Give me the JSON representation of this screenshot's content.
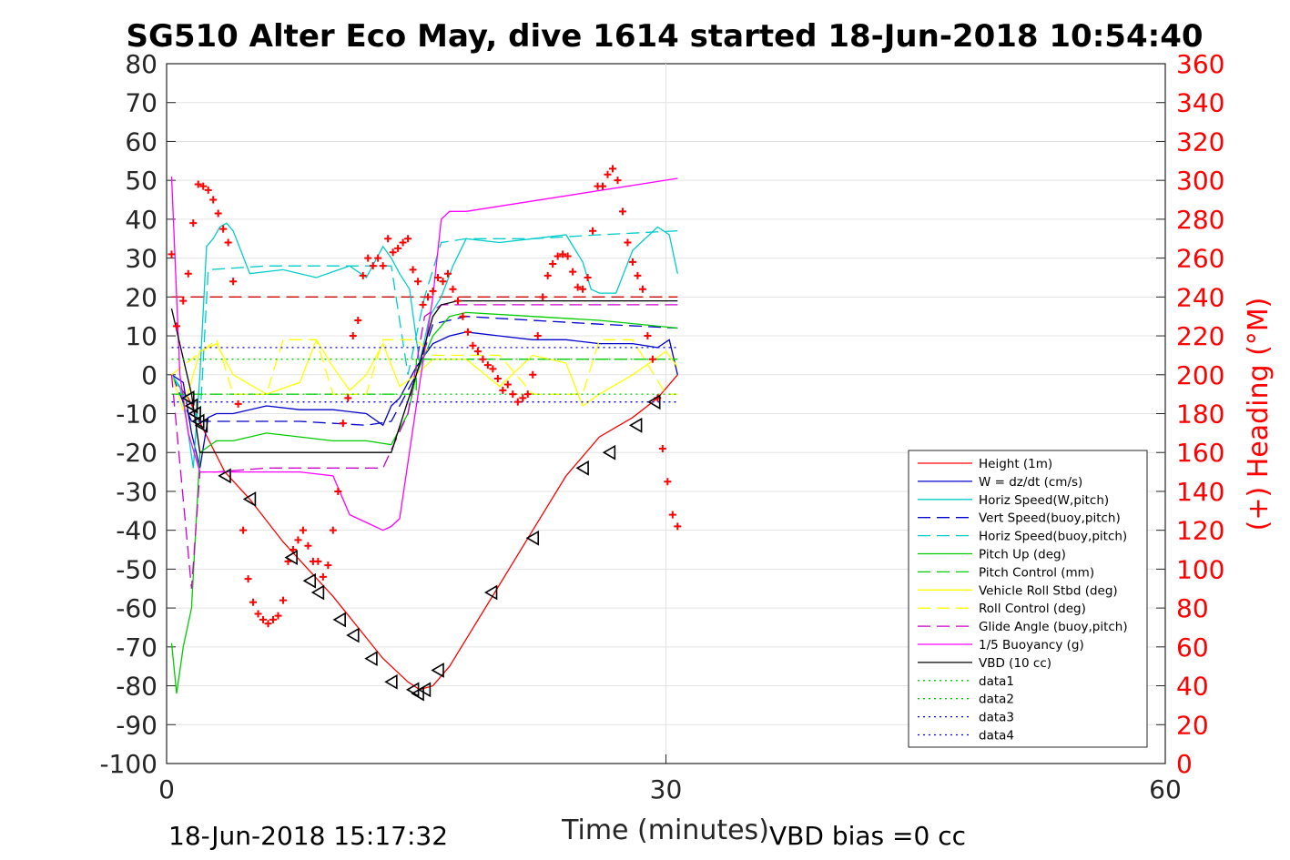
{
  "chart_data": {
    "type": "line",
    "title": "SG510 Alter Eco May, dive 1614 started 18-Jun-2018 10:54:40",
    "xlabel": "Time (minutes)",
    "ylabel_right": "(+) Heading (°M)",
    "xlim": [
      0,
      60
    ],
    "ylim_left": [
      -100,
      80
    ],
    "ylim_right": [
      0,
      360
    ],
    "x_ticks": [
      "0",
      "30",
      "60"
    ],
    "y_ticks_left": [
      "80",
      "70",
      "60",
      "50",
      "40",
      "30",
      "20",
      "10",
      "0",
      "-10",
      "-20",
      "-30",
      "-40",
      "-50",
      "-60",
      "-70",
      "-80",
      "-90",
      "-100"
    ],
    "y_ticks_right": [
      "360",
      "340",
      "320",
      "300",
      "280",
      "260",
      "240",
      "220",
      "200",
      "180",
      "160",
      "140",
      "120",
      "100",
      "80",
      "60",
      "40",
      "20",
      "0"
    ],
    "grid": true,
    "legend_position": "lower-right",
    "footer_left": "18-Jun-2018 15:17:32",
    "footer_right": "VBD bias =0 cc",
    "series": [
      {
        "name": "Height (1m)",
        "color": "#ff0000",
        "style": "solid",
        "x": [
          0.3,
          1.3,
          2.2,
          3.5,
          5,
          7,
          8.5,
          10,
          11.5,
          13,
          14.5,
          15.2,
          16,
          17,
          18,
          20,
          22,
          24,
          26,
          28,
          29.5,
          30.7
        ],
        "y": [
          -0.5,
          -6,
          -14,
          -25,
          -32,
          -43,
          -50,
          -57,
          -65,
          -73,
          -79,
          -81,
          -80,
          -75,
          -68,
          -54,
          -40,
          -26,
          -16,
          -11,
          -6,
          0
        ]
      },
      {
        "name": "W = dz/dt (cm/s)",
        "color": "#0000cc",
        "style": "solid",
        "x": [
          0.3,
          1,
          1.5,
          2,
          2.5,
          3,
          4,
          6,
          8,
          10,
          12,
          13,
          13.5,
          14,
          15,
          16,
          17,
          18,
          20,
          22,
          24,
          26,
          28,
          29.5,
          30.2,
          30.7
        ],
        "y": [
          0,
          -2,
          -15,
          -24,
          -11,
          -10,
          -10,
          -8,
          -9,
          -9,
          -10,
          -13,
          -8,
          -6,
          2,
          8,
          10,
          11,
          10,
          9,
          9,
          8,
          8,
          7,
          9,
          0
        ]
      },
      {
        "name": "Horiz Speed(W,pitch)",
        "color": "#00cccc",
        "style": "solid",
        "x": [
          0.3,
          0.8,
          1.2,
          1.6,
          2,
          2.4,
          2.8,
          3.2,
          3.6,
          4,
          5,
          7,
          9,
          11,
          12,
          13,
          13.5,
          14,
          14.6,
          15.2,
          15.8,
          16.5,
          17.2,
          18,
          20,
          22,
          24,
          25,
          25.5,
          26,
          27,
          28,
          29.5,
          30.2,
          30.7
        ],
        "y": [
          0,
          -3,
          -12,
          -24,
          0,
          33,
          35,
          38,
          39,
          37,
          26,
          27,
          25,
          28,
          25,
          33,
          30,
          26,
          22,
          3,
          15,
          20,
          28,
          35,
          34,
          35,
          36,
          29,
          22,
          21,
          21,
          32,
          38,
          36,
          26
        ]
      },
      {
        "name": "Vert Speed(buoy,pitch)",
        "color": "#0000cc",
        "style": "dashed",
        "x": [
          0.3,
          1.5,
          2.5,
          4,
          8,
          12,
          13.5,
          15,
          16,
          18,
          22,
          26,
          30.7
        ],
        "y": [
          0,
          -12,
          -12,
          -12,
          -12,
          -13,
          -12,
          0,
          13,
          15,
          14,
          13,
          12
        ]
      },
      {
        "name": "Horiz Speed(buoy,pitch)",
        "color": "#00cccc",
        "style": "dashed",
        "x": [
          0.3,
          2,
          2.5,
          6,
          10,
          13.5,
          14.5,
          15.5,
          16.5,
          18,
          22,
          26,
          30.7
        ],
        "y": [
          0,
          -12,
          27,
          28,
          28,
          28,
          0,
          20,
          34,
          35,
          35,
          36,
          37
        ]
      },
      {
        "name": "Pitch Up (deg)",
        "color": "#00cc00",
        "style": "solid",
        "x": [
          0.3,
          0.6,
          1,
          1.5,
          2,
          3,
          4,
          6,
          8,
          10,
          12,
          13.5,
          14.5,
          15,
          16,
          17,
          18,
          22,
          26,
          30.7
        ],
        "y": [
          -69,
          -82,
          -70,
          -60,
          -20,
          -17,
          -17,
          -15,
          -16,
          -17,
          -17,
          -18,
          -10,
          0,
          10,
          15,
          16,
          15,
          14,
          12
        ]
      },
      {
        "name": "Pitch Control (mm)",
        "color": "#00cc00",
        "style": "dashed",
        "x": [
          0.3,
          15,
          15,
          30.7
        ],
        "y": [
          -5,
          -5,
          4,
          4
        ]
      },
      {
        "name": "Vehicle Roll Stbd (deg)",
        "color": "#ffff00",
        "style": "solid",
        "x": [
          0.3,
          1,
          2,
          3,
          4,
          6,
          8,
          9,
          10,
          11,
          12,
          13,
          14,
          15,
          16,
          18,
          20,
          22,
          24,
          25,
          26,
          28,
          30,
          30.7
        ],
        "y": [
          0,
          -9,
          6,
          8,
          0,
          -5,
          -2,
          9,
          2,
          -4,
          0,
          8,
          -3,
          0,
          4,
          4,
          -3,
          5,
          3,
          -8,
          -5,
          0,
          6,
          2
        ]
      },
      {
        "name": "Roll Control (deg)",
        "color": "#ffff00",
        "style": "dashed",
        "x": [
          0.3,
          3,
          4,
          6,
          7,
          9,
          10,
          12,
          13,
          15,
          16,
          20,
          22,
          25,
          26,
          28,
          30,
          30.7
        ],
        "y": [
          0,
          9,
          -5,
          -5,
          9,
          9,
          -5,
          -5,
          9,
          9,
          5,
          5,
          -5,
          -5,
          9,
          9,
          -5,
          -5
        ]
      },
      {
        "name": "Glide Angle (buoy,pitch)",
        "color": "#cc00cc",
        "style": "dashed",
        "x": [
          0.3,
          1.5,
          2,
          3,
          6,
          10,
          13,
          14.5,
          15.5,
          16.5,
          18,
          22,
          26,
          30.7
        ],
        "y": [
          0,
          -55,
          -25,
          -25,
          -24,
          -24,
          -24,
          -10,
          15,
          18,
          18,
          18,
          18,
          18
        ]
      },
      {
        "name": "1/5 Buoyancy (g)",
        "color": "#ff00ff",
        "style": "solid",
        "x": [
          0.3,
          0.8,
          1.3,
          2,
          3,
          8,
          10,
          11,
          12,
          13,
          13.5,
          14,
          15,
          16,
          16.5,
          17,
          18,
          30.7
        ],
        "y": [
          51,
          0,
          -15,
          -25,
          -25,
          -25,
          -26,
          -36,
          -38,
          -40,
          -39,
          -37,
          -8,
          20,
          40,
          42,
          42,
          50.5
        ]
      },
      {
        "name": "VBD (10 cc)",
        "color": "#000000",
        "style": "solid",
        "x": [
          0.3,
          1.5,
          2,
          13.5,
          15,
          16,
          16.5,
          17.5,
          30.7
        ],
        "y": [
          17,
          -5,
          -20,
          -20,
          0,
          15,
          18,
          19,
          19
        ]
      },
      {
        "name": "data1",
        "color": "#00cc00",
        "style": "dotted",
        "x": [
          0.3,
          30.7
        ],
        "y": [
          4,
          4
        ]
      },
      {
        "name": "data2",
        "color": "#00cc00",
        "style": "dotted",
        "x": [
          0.3,
          30.7
        ],
        "y": [
          -5,
          -5
        ]
      },
      {
        "name": "data3",
        "color": "#0000cc",
        "style": "dotted",
        "x": [
          0.3,
          30.7
        ],
        "y": [
          7,
          7
        ]
      },
      {
        "name": "data4",
        "color": "#0000cc",
        "style": "dotted",
        "x": [
          0.3,
          30.7
        ],
        "y": [
          -7,
          -7
        ]
      }
    ],
    "reference_lines": [
      {
        "color": "#cc0000",
        "style": "dashed",
        "x": [
          0.3,
          30.7
        ],
        "y": [
          20,
          20
        ]
      }
    ],
    "heading": {
      "color": "#ff0000",
      "marker": "+",
      "axis": "right",
      "x": [
        0.3,
        0.6,
        1,
        1.3,
        1.6,
        1.9,
        2.2,
        2.5,
        2.8,
        3.1,
        3.4,
        3.7,
        4,
        4.3,
        4.6,
        4.9,
        5.2,
        5.5,
        5.8,
        6.1,
        6.4,
        6.7,
        7,
        7.3,
        7.6,
        7.9,
        8.2,
        8.5,
        8.8,
        9.1,
        9.4,
        9.7,
        10,
        10.3,
        10.6,
        10.9,
        11.2,
        11.5,
        11.8,
        12.1,
        12.4,
        12.7,
        13,
        13.3,
        13.6,
        13.9,
        14.2,
        14.5,
        14.8,
        15.1,
        15.4,
        15.7,
        16,
        16.3,
        16.6,
        16.9,
        17.2,
        17.5,
        17.8,
        18.1,
        18.4,
        18.7,
        19,
        19.3,
        19.6,
        19.9,
        20.2,
        20.5,
        20.8,
        21.1,
        21.4,
        21.7,
        22,
        22.3,
        22.6,
        22.9,
        23.2,
        23.5,
        23.8,
        24.1,
        24.4,
        24.7,
        25,
        25.3,
        25.6,
        25.9,
        26.2,
        26.5,
        26.8,
        27.1,
        27.4,
        27.7,
        28,
        28.3,
        28.6,
        28.9,
        29.2,
        29.5,
        29.8,
        30.1,
        30.4,
        30.7
      ],
      "y": [
        262,
        225,
        238,
        252,
        278,
        298,
        297,
        295,
        290,
        283,
        275,
        268,
        248,
        185,
        120,
        95,
        83,
        77,
        74,
        72,
        74,
        76,
        84,
        104,
        110,
        115,
        120,
        112,
        104,
        104,
        96,
        102,
        120,
        140,
        175,
        188,
        220,
        228,
        251,
        260,
        256,
        260,
        256,
        270,
        263,
        265,
        268,
        270,
        254,
        248,
        236,
        240,
        243,
        250,
        248,
        252,
        244,
        238,
        230,
        222,
        215,
        212,
        208,
        205,
        203,
        198,
        192,
        195,
        190,
        186,
        188,
        190,
        200,
        220,
        240,
        251,
        257,
        261,
        262,
        261,
        253,
        245,
        244,
        250,
        274,
        297,
        297,
        303,
        306,
        300,
        284,
        268,
        258,
        251,
        244,
        220,
        208,
        188,
        162,
        145,
        128,
        122
      ]
    },
    "markers": {
      "color": "#000000",
      "marker": "triangle-left",
      "x": [
        1.3,
        1.5,
        1.7,
        1.9,
        2.1,
        3.5,
        5,
        7.5,
        8.6,
        9.1,
        10.4,
        11.2,
        12.3,
        13.5,
        14.8,
        15.1,
        15.5,
        16.3,
        19.5,
        22,
        25,
        26.6,
        28.2,
        29.3
      ],
      "y": [
        -6,
        -8,
        -10,
        -12,
        -13,
        -26,
        -32,
        -47,
        -53,
        -56,
        -63,
        -67,
        -73,
        -79,
        -81,
        -82,
        -81,
        -76,
        -56,
        -42,
        -24,
        -20,
        -13,
        -7
      ]
    }
  }
}
